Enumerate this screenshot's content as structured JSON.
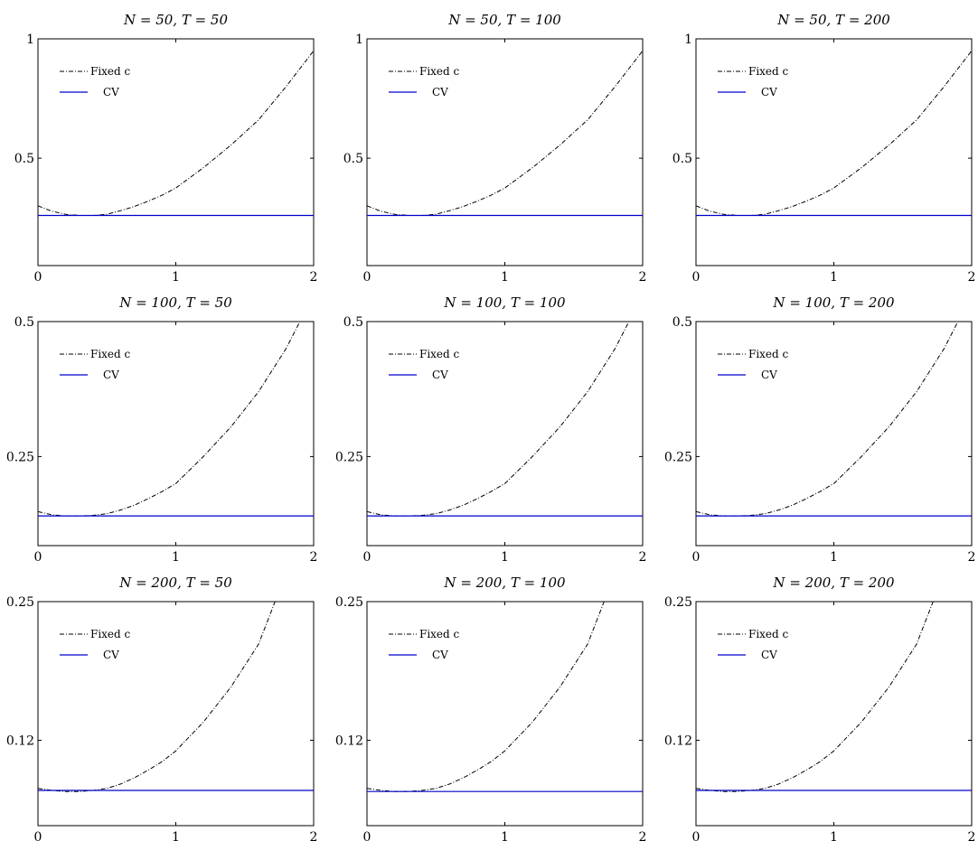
{
  "colors": {
    "fixed_c": "#000000",
    "cv": "#0000cc",
    "axis": "#000000"
  },
  "chart_data": [
    {
      "type": "line",
      "title": "N = 50, T = 50",
      "xlim": [
        0,
        2
      ],
      "ylim": [
        0.05,
        1
      ],
      "xticks": [
        0,
        1,
        2
      ],
      "xtick_labels": [
        "0",
        "1",
        "2"
      ],
      "yticks": [
        0.5,
        1
      ],
      "ytick_labels": [
        "0.5",
        "1"
      ],
      "legend": {
        "position": "top-left",
        "entries": [
          "Fixed c",
          "CV"
        ]
      },
      "series": [
        {
          "name": "Fixed c",
          "style": "dash-dot",
          "x": [
            0,
            0.1,
            0.2,
            0.3,
            0.4,
            0.5,
            0.6,
            0.7,
            0.8,
            0.9,
            1.0,
            1.2,
            1.4,
            1.6,
            1.8,
            2.0
          ],
          "y": [
            0.3,
            0.278,
            0.265,
            0.26,
            0.26,
            0.265,
            0.28,
            0.298,
            0.32,
            0.345,
            0.375,
            0.46,
            0.555,
            0.66,
            0.8,
            0.95
          ]
        },
        {
          "name": "CV",
          "style": "solid",
          "x": [
            0,
            2
          ],
          "y": [
            0.26,
            0.26
          ]
        }
      ]
    },
    {
      "type": "line",
      "title": "N = 50, T = 100",
      "xlim": [
        0,
        2
      ],
      "ylim": [
        0.05,
        1
      ],
      "xticks": [
        0,
        1,
        2
      ],
      "xtick_labels": [
        "0",
        "1",
        "2"
      ],
      "yticks": [
        0.5,
        1
      ],
      "ytick_labels": [
        "0.5",
        "1"
      ],
      "legend": {
        "position": "top-left",
        "entries": [
          "Fixed c",
          "CV"
        ]
      },
      "series": [
        {
          "name": "Fixed c",
          "style": "dash-dot",
          "x": [
            0,
            0.1,
            0.2,
            0.3,
            0.4,
            0.5,
            0.6,
            0.7,
            0.8,
            0.9,
            1.0,
            1.2,
            1.4,
            1.6,
            1.8,
            2.0
          ],
          "y": [
            0.3,
            0.278,
            0.265,
            0.26,
            0.26,
            0.265,
            0.28,
            0.298,
            0.32,
            0.345,
            0.375,
            0.46,
            0.555,
            0.66,
            0.8,
            0.95
          ]
        },
        {
          "name": "CV",
          "style": "solid",
          "x": [
            0,
            2
          ],
          "y": [
            0.26,
            0.26
          ]
        }
      ]
    },
    {
      "type": "line",
      "title": "N = 50, T = 200",
      "xlim": [
        0,
        2
      ],
      "ylim": [
        0.05,
        1
      ],
      "xticks": [
        0,
        1,
        2
      ],
      "xtick_labels": [
        "0",
        "1",
        "2"
      ],
      "yticks": [
        0.5,
        1
      ],
      "ytick_labels": [
        "0.5",
        "1"
      ],
      "legend": {
        "position": "top-left",
        "entries": [
          "Fixed c",
          "CV"
        ]
      },
      "series": [
        {
          "name": "Fixed c",
          "style": "dash-dot",
          "x": [
            0,
            0.1,
            0.2,
            0.3,
            0.4,
            0.5,
            0.6,
            0.7,
            0.8,
            0.9,
            1.0,
            1.2,
            1.4,
            1.6,
            1.8,
            2.0
          ],
          "y": [
            0.3,
            0.278,
            0.265,
            0.26,
            0.26,
            0.265,
            0.28,
            0.298,
            0.32,
            0.345,
            0.375,
            0.46,
            0.555,
            0.66,
            0.8,
            0.95
          ]
        },
        {
          "name": "CV",
          "style": "solid",
          "x": [
            0,
            2
          ],
          "y": [
            0.26,
            0.26
          ]
        }
      ]
    },
    {
      "type": "line",
      "title": "N = 100, T = 50",
      "xlim": [
        0,
        2
      ],
      "ylim": [
        0.085,
        0.5
      ],
      "xticks": [
        0,
        1,
        2
      ],
      "xtick_labels": [
        "0",
        "1",
        "2"
      ],
      "yticks": [
        0.25,
        0.5
      ],
      "ytick_labels": [
        "0.25",
        "0.5"
      ],
      "legend": {
        "position": "top-left",
        "entries": [
          "Fixed c",
          "CV"
        ]
      },
      "series": [
        {
          "name": "Fixed c",
          "style": "dash-dot",
          "x": [
            0,
            0.1,
            0.2,
            0.3,
            0.4,
            0.5,
            0.6,
            0.7,
            0.8,
            0.9,
            1.0,
            1.2,
            1.4,
            1.6,
            1.8,
            1.9
          ],
          "y": [
            0.148,
            0.142,
            0.14,
            0.14,
            0.141,
            0.144,
            0.151,
            0.16,
            0.172,
            0.185,
            0.2,
            0.25,
            0.305,
            0.37,
            0.45,
            0.5
          ]
        },
        {
          "name": "CV",
          "style": "solid",
          "x": [
            0,
            2
          ],
          "y": [
            0.14,
            0.14
          ]
        }
      ]
    },
    {
      "type": "line",
      "title": "N = 100, T = 100",
      "xlim": [
        0,
        2
      ],
      "ylim": [
        0.085,
        0.5
      ],
      "xticks": [
        0,
        1,
        2
      ],
      "xtick_labels": [
        "0",
        "1",
        "2"
      ],
      "yticks": [
        0.25,
        0.5
      ],
      "ytick_labels": [
        "0.25",
        "0.5"
      ],
      "legend": {
        "position": "top-left",
        "entries": [
          "Fixed c",
          "CV"
        ]
      },
      "series": [
        {
          "name": "Fixed c",
          "style": "dash-dot",
          "x": [
            0,
            0.1,
            0.2,
            0.3,
            0.4,
            0.5,
            0.6,
            0.7,
            0.8,
            0.9,
            1.0,
            1.2,
            1.4,
            1.6,
            1.8,
            1.9
          ],
          "y": [
            0.148,
            0.142,
            0.14,
            0.14,
            0.141,
            0.144,
            0.151,
            0.16,
            0.172,
            0.185,
            0.2,
            0.25,
            0.305,
            0.37,
            0.45,
            0.5
          ]
        },
        {
          "name": "CV",
          "style": "solid",
          "x": [
            0,
            2
          ],
          "y": [
            0.14,
            0.14
          ]
        }
      ]
    },
    {
      "type": "line",
      "title": "N = 100, T = 200",
      "xlim": [
        0,
        2
      ],
      "ylim": [
        0.085,
        0.5
      ],
      "xticks": [
        0,
        1,
        2
      ],
      "xtick_labels": [
        "0",
        "1",
        "2"
      ],
      "yticks": [
        0.25,
        0.5
      ],
      "ytick_labels": [
        "0.25",
        "0.5"
      ],
      "legend": {
        "position": "top-left",
        "entries": [
          "Fixed c",
          "CV"
        ]
      },
      "series": [
        {
          "name": "Fixed c",
          "style": "dash-dot",
          "x": [
            0,
            0.1,
            0.2,
            0.3,
            0.4,
            0.5,
            0.6,
            0.7,
            0.8,
            0.9,
            1.0,
            1.2,
            1.4,
            1.6,
            1.8,
            1.9
          ],
          "y": [
            0.148,
            0.142,
            0.14,
            0.14,
            0.141,
            0.144,
            0.151,
            0.16,
            0.172,
            0.185,
            0.2,
            0.25,
            0.305,
            0.37,
            0.45,
            0.5
          ]
        },
        {
          "name": "CV",
          "style": "solid",
          "x": [
            0,
            2
          ],
          "y": [
            0.14,
            0.14
          ]
        }
      ]
    },
    {
      "type": "line",
      "title": "N = 200, T = 50",
      "xlim": [
        0,
        2
      ],
      "ylim": [
        0.04,
        0.25
      ],
      "xticks": [
        0,
        1,
        2
      ],
      "xtick_labels": [
        "0",
        "1",
        "2"
      ],
      "yticks": [
        0.12,
        0.25
      ],
      "ytick_labels": [
        "0.12",
        "0.25"
      ],
      "legend": {
        "position": "top-left",
        "entries": [
          "Fixed c",
          "CV"
        ]
      },
      "series": [
        {
          "name": "Fixed c",
          "style": "dash-dot",
          "x": [
            0,
            0.1,
            0.2,
            0.3,
            0.4,
            0.5,
            0.6,
            0.7,
            0.8,
            0.9,
            1.0,
            1.2,
            1.4,
            1.6,
            1.72
          ],
          "y": [
            0.075,
            0.073,
            0.072,
            0.072,
            0.073,
            0.075,
            0.079,
            0.085,
            0.092,
            0.1,
            0.11,
            0.137,
            0.17,
            0.21,
            0.25
          ]
        },
        {
          "name": "CV",
          "style": "solid",
          "x": [
            0,
            2
          ],
          "y": [
            0.073,
            0.073
          ]
        }
      ]
    },
    {
      "type": "line",
      "title": "N = 200, T = 100",
      "xlim": [
        0,
        2
      ],
      "ylim": [
        0.04,
        0.25
      ],
      "xticks": [
        0,
        1,
        2
      ],
      "xtick_labels": [
        "0",
        "1",
        "2"
      ],
      "yticks": [
        0.12,
        0.25
      ],
      "ytick_labels": [
        "0.12",
        "0.25"
      ],
      "legend": {
        "position": "top-left",
        "entries": [
          "Fixed c",
          "CV"
        ]
      },
      "series": [
        {
          "name": "Fixed c",
          "style": "dash-dot",
          "x": [
            0,
            0.1,
            0.2,
            0.3,
            0.4,
            0.5,
            0.6,
            0.7,
            0.8,
            0.9,
            1.0,
            1.2,
            1.4,
            1.6,
            1.72
          ],
          "y": [
            0.075,
            0.073,
            0.072,
            0.072,
            0.073,
            0.075,
            0.079,
            0.085,
            0.092,
            0.1,
            0.11,
            0.137,
            0.17,
            0.21,
            0.25
          ]
        },
        {
          "name": "CV",
          "style": "solid",
          "x": [
            0,
            2
          ],
          "y": [
            0.072,
            0.072
          ]
        }
      ]
    },
    {
      "type": "line",
      "title": "N = 200, T = 200",
      "xlim": [
        0,
        2
      ],
      "ylim": [
        0.04,
        0.25
      ],
      "xticks": [
        0,
        1,
        2
      ],
      "xtick_labels": [
        "0",
        "1",
        "2"
      ],
      "yticks": [
        0.12,
        0.25
      ],
      "ytick_labels": [
        "0.12",
        "0.25"
      ],
      "legend": {
        "position": "top-left",
        "entries": [
          "Fixed c",
          "CV"
        ]
      },
      "series": [
        {
          "name": "Fixed c",
          "style": "dash-dot",
          "x": [
            0,
            0.1,
            0.2,
            0.3,
            0.4,
            0.5,
            0.6,
            0.7,
            0.8,
            0.9,
            1.0,
            1.2,
            1.4,
            1.6,
            1.72
          ],
          "y": [
            0.075,
            0.073,
            0.072,
            0.072,
            0.073,
            0.075,
            0.079,
            0.085,
            0.092,
            0.1,
            0.11,
            0.137,
            0.17,
            0.21,
            0.25
          ]
        },
        {
          "name": "CV",
          "style": "solid",
          "x": [
            0,
            2
          ],
          "y": [
            0.073,
            0.073
          ]
        }
      ]
    }
  ]
}
